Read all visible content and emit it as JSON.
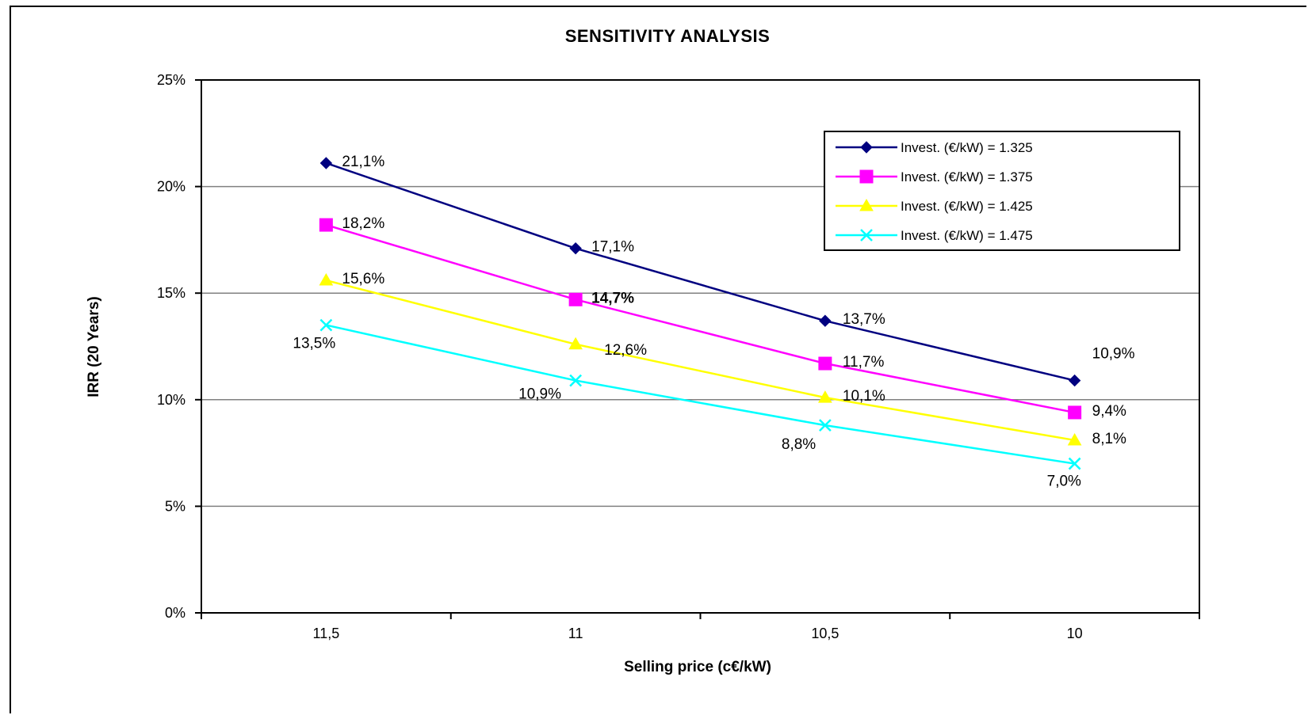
{
  "chart_data": {
    "type": "line",
    "title": "SENSITIVITY ANALYSIS",
    "xlabel": "Selling price (c€/kW)",
    "ylabel": "IRR (20 Years)",
    "categories": [
      "11,5",
      "11",
      "10,5",
      "10"
    ],
    "ylim": [
      0,
      25
    ],
    "yticks": [
      "0%",
      "5%",
      "10%",
      "15%",
      "20%",
      "25%"
    ],
    "grid": true,
    "legend_position": "top-right",
    "series": [
      {
        "name": "Invest. (€/kW) = 1.325",
        "color": "#000080",
        "marker": "diamond",
        "values": [
          21.1,
          17.1,
          13.7,
          10.9
        ],
        "labels": [
          "21,1%",
          "17,1%",
          "13,7%",
          "10,9%"
        ]
      },
      {
        "name": "Invest. (€/kW) = 1.375",
        "color": "#ff00ff",
        "marker": "square",
        "values": [
          18.2,
          14.7,
          11.7,
          9.4
        ],
        "labels": [
          "18,2%",
          "14,7%",
          "11,7%",
          "9,4%"
        ]
      },
      {
        "name": "Invest. (€/kW) = 1.425",
        "color": "#ffff00",
        "marker": "triangle",
        "values": [
          15.6,
          12.6,
          10.1,
          8.1
        ],
        "labels": [
          "15,6%",
          "12,6%",
          "10,1%",
          "8,1%"
        ]
      },
      {
        "name": "Invest. (€/kW) = 1.475",
        "color": "#00ffff",
        "marker": "x",
        "values": [
          13.5,
          10.9,
          8.8,
          7.0
        ],
        "labels": [
          "13,5%",
          "10,9%",
          "8,8%",
          "7,0%"
        ]
      }
    ]
  }
}
